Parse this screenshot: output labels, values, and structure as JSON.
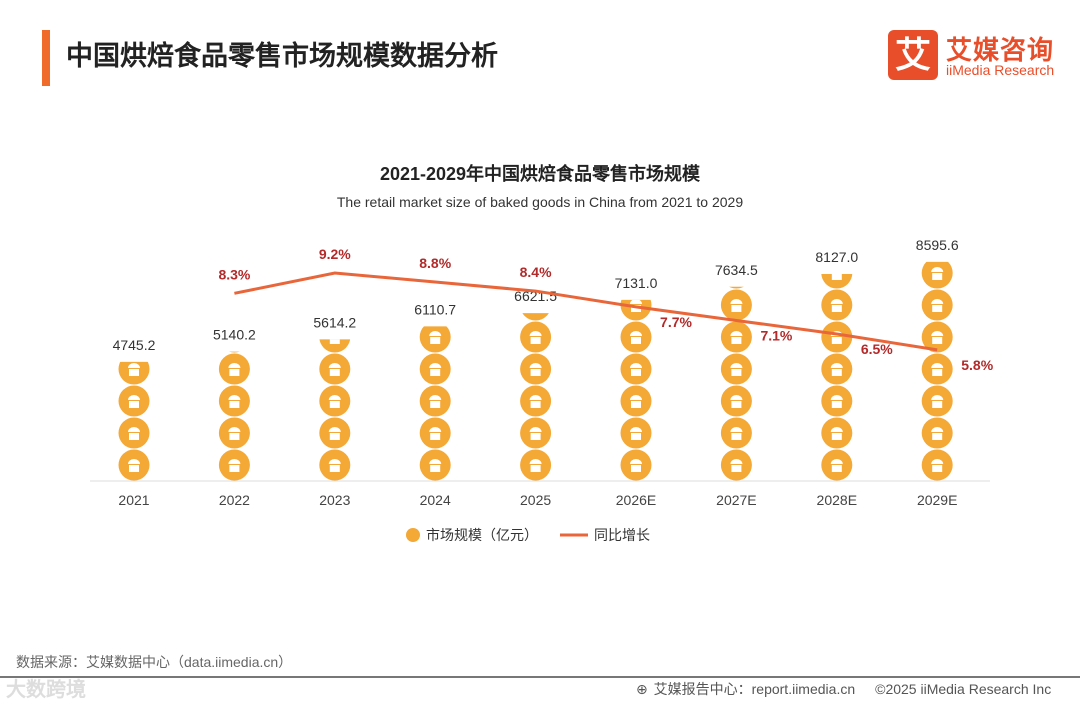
{
  "header": {
    "title": "中国烘焙食品零售市场规模数据分析",
    "logo_mark": "艾",
    "logo_cn": "艾媒咨询",
    "logo_en": "iiMedia Research"
  },
  "chart_data": {
    "type": "bar",
    "title": "2021-2029年中国烘焙食品零售市场规模",
    "subtitle": "The retail market size of baked goods in China from 2021 to 2029",
    "categories": [
      "2021",
      "2022",
      "2023",
      "2024",
      "2025",
      "2026E",
      "2027E",
      "2028E",
      "2029E"
    ],
    "series": [
      {
        "name": "市场规模（亿元）",
        "type": "pictorial-bar",
        "color": "#f4a836",
        "values": [
          4745.2,
          5140.2,
          5614.2,
          6110.7,
          6621.5,
          7131.0,
          7634.5,
          8127.0,
          8595.6
        ],
        "labels": [
          "4745.2",
          "5140.2",
          "5614.2",
          "6110.7",
          "6621.5",
          "7131.0",
          "7634.5",
          "8127.0",
          "8595.6"
        ]
      },
      {
        "name": "同比增长",
        "type": "line",
        "color": "#e8663a",
        "values": [
          null,
          8.3,
          9.2,
          8.8,
          8.4,
          7.7,
          7.1,
          6.5,
          5.8
        ],
        "labels": [
          "",
          "8.3%",
          "9.2%",
          "8.8%",
          "8.4%",
          "7.7%",
          "7.1%",
          "6.5%",
          "5.8%"
        ]
      }
    ],
    "legend_position": "bottom",
    "grid": false
  },
  "footer": {
    "source": "数据来源：艾媒数据中心（data.iimedia.cn）",
    "report": "艾媒报告中心：report.iimedia.cn",
    "copyright": "©2025  iiMedia Research  Inc",
    "watermark": "大数跨境"
  }
}
